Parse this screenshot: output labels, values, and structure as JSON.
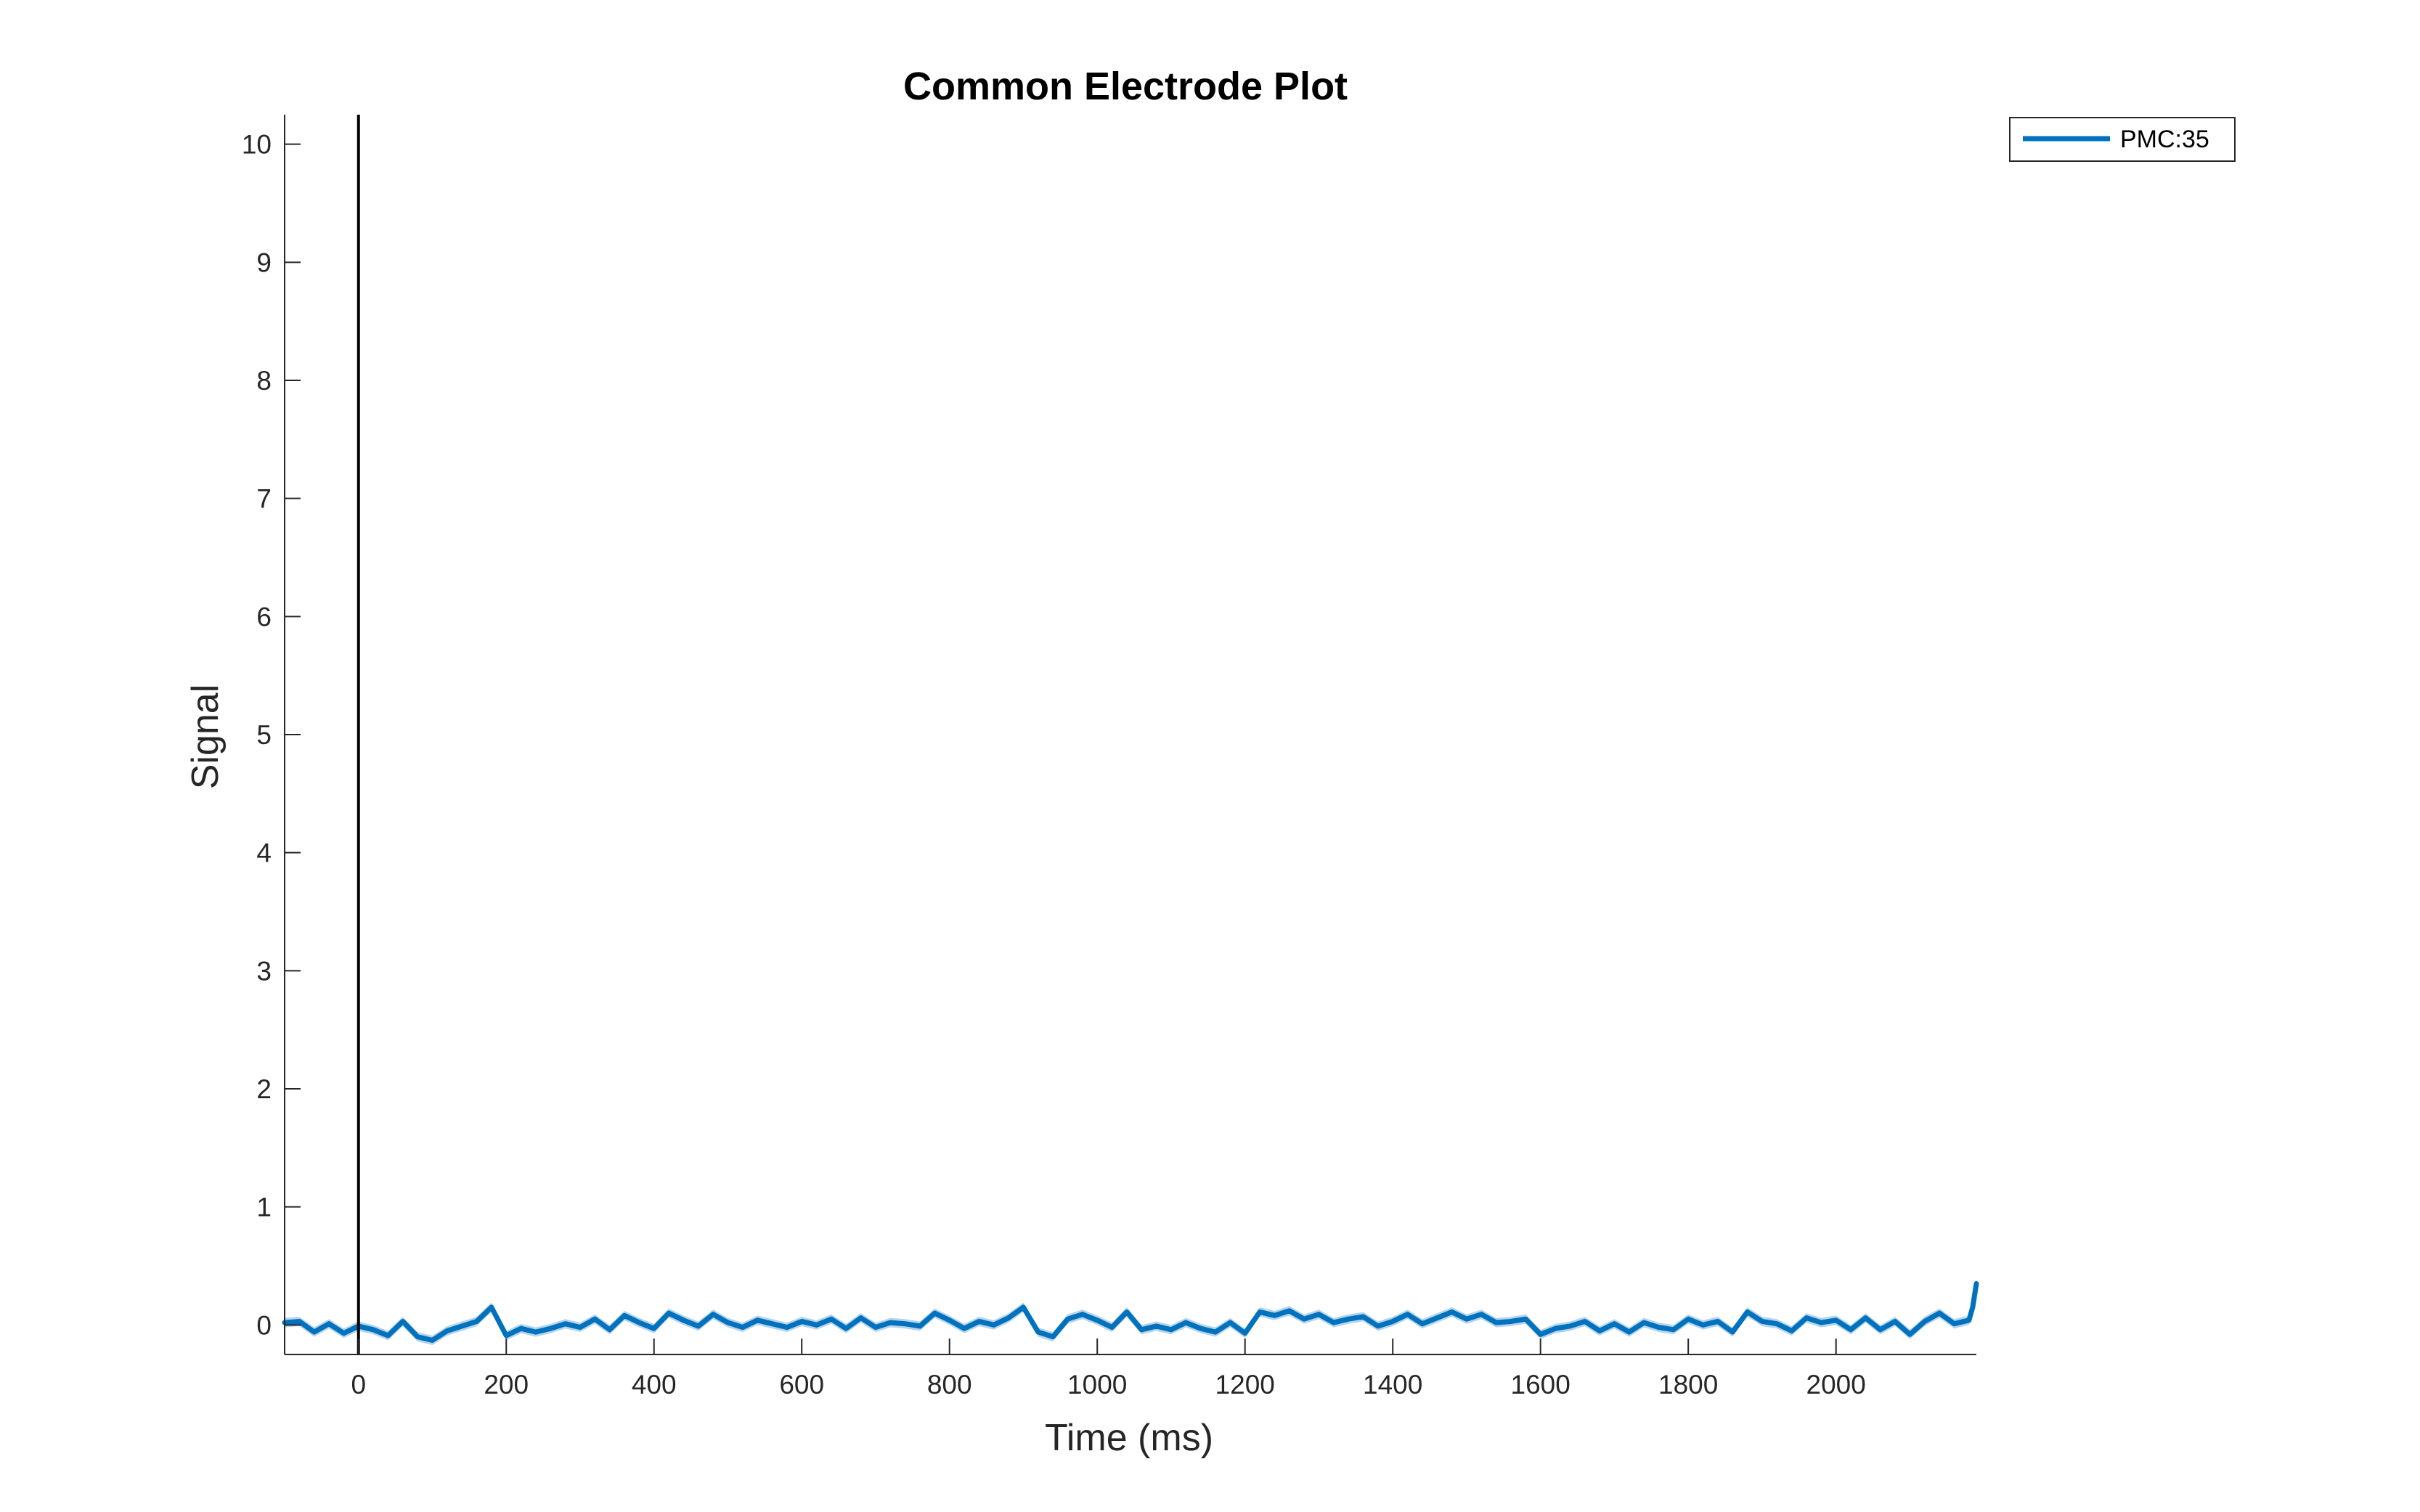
{
  "chart_data": {
    "type": "line",
    "title": "Common Electrode Plot",
    "xlabel": "Time (ms)",
    "ylabel": "Signal",
    "xlim": [
      -100,
      2190
    ],
    "ylim": [
      -0.25,
      10.25
    ],
    "xticks": [
      0,
      200,
      400,
      600,
      800,
      1000,
      1200,
      1400,
      1600,
      1800,
      2000
    ],
    "yticks": [
      0,
      1,
      2,
      3,
      4,
      5,
      6,
      7,
      8,
      9,
      10
    ],
    "xtick_labels": [
      "0",
      "200",
      "400",
      "600",
      "800",
      "1000",
      "1200",
      "1400",
      "1600",
      "1800",
      "2000"
    ],
    "ytick_labels": [
      "0",
      "1",
      "2",
      "3",
      "4",
      "5",
      "6",
      "7",
      "8",
      "9",
      "10"
    ],
    "grid": false,
    "legend_position": "top-right",
    "reference_line_x": 0,
    "series": [
      {
        "name": "PMC:35",
        "color": "#0072BD",
        "band_color": "#5aa0d8",
        "band_halfwidth": 0.04,
        "x": [
          -100,
          -80,
          -60,
          -40,
          -20,
          0,
          20,
          40,
          60,
          80,
          100,
          120,
          140,
          160,
          180,
          200,
          220,
          240,
          260,
          280,
          300,
          320,
          340,
          360,
          380,
          400,
          420,
          440,
          460,
          480,
          500,
          520,
          540,
          560,
          580,
          600,
          620,
          640,
          660,
          680,
          700,
          720,
          740,
          760,
          780,
          800,
          820,
          840,
          860,
          880,
          900,
          920,
          940,
          960,
          980,
          1000,
          1020,
          1040,
          1060,
          1080,
          1100,
          1120,
          1140,
          1160,
          1180,
          1200,
          1220,
          1240,
          1260,
          1280,
          1300,
          1320,
          1340,
          1360,
          1380,
          1400,
          1420,
          1440,
          1460,
          1480,
          1500,
          1520,
          1540,
          1560,
          1580,
          1600,
          1620,
          1640,
          1660,
          1680,
          1700,
          1720,
          1740,
          1760,
          1780,
          1800,
          1820,
          1840,
          1860,
          1880,
          1900,
          1920,
          1940,
          1960,
          1980,
          2000,
          2020,
          2040,
          2060,
          2080,
          2100,
          2120,
          2140,
          2160,
          2180,
          2185,
          2190
        ],
        "y": [
          0.02,
          0.03,
          -0.06,
          0.01,
          -0.07,
          -0.01,
          -0.04,
          -0.09,
          0.03,
          -0.1,
          -0.13,
          -0.05,
          -0.01,
          0.03,
          0.15,
          -0.09,
          -0.03,
          -0.06,
          -0.03,
          0.01,
          -0.02,
          0.05,
          -0.04,
          0.08,
          0.02,
          -0.03,
          0.1,
          0.04,
          -0.01,
          0.09,
          0.02,
          -0.02,
          0.04,
          0.01,
          -0.02,
          0.03,
          0.0,
          0.05,
          -0.03,
          0.06,
          -0.02,
          0.02,
          0.01,
          -0.01,
          0.1,
          0.04,
          -0.03,
          0.03,
          0.0,
          0.06,
          0.15,
          -0.06,
          -0.1,
          0.05,
          0.09,
          0.04,
          -0.02,
          0.11,
          -0.04,
          -0.01,
          -0.04,
          0.02,
          -0.03,
          -0.06,
          0.02,
          -0.07,
          0.11,
          0.08,
          0.12,
          0.05,
          0.09,
          0.02,
          0.05,
          0.07,
          -0.01,
          0.03,
          0.09,
          0.01,
          0.06,
          0.11,
          0.05,
          0.09,
          0.02,
          0.03,
          0.05,
          -0.08,
          -0.03,
          -0.01,
          0.03,
          -0.05,
          0.01,
          -0.06,
          0.02,
          -0.02,
          -0.04,
          0.05,
          0.0,
          0.03,
          -0.06,
          0.11,
          0.03,
          0.01,
          -0.05,
          0.06,
          0.02,
          0.04,
          -0.04,
          0.06,
          -0.04,
          0.03,
          -0.08,
          0.03,
          0.1,
          0.01,
          0.04,
          0.15,
          0.35
        ]
      }
    ]
  }
}
